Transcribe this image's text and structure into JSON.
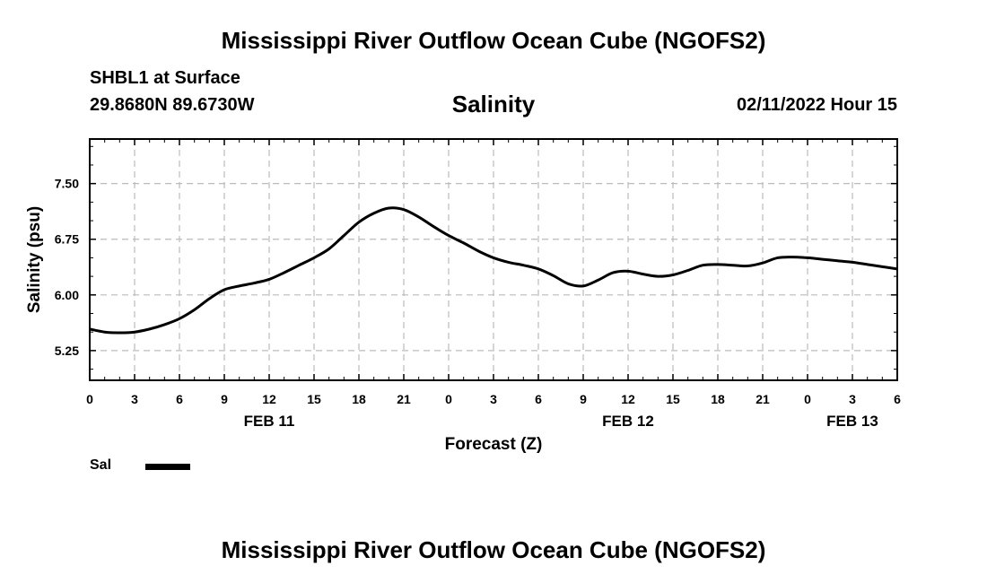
{
  "header": {
    "title": "Mississippi River Outflow Ocean Cube (NGOFS2)",
    "station": "SHBL1 at Surface",
    "coordinates": "29.8680N  89.6730W",
    "chart_title": "Salinity",
    "datetime": "02/11/2022 Hour 15"
  },
  "footer": {
    "title": "Mississippi River Outflow Ocean Cube (NGOFS2)"
  },
  "legend": {
    "label": "Sal",
    "color": "#000000"
  },
  "chart_data": {
    "type": "line",
    "title": "Salinity",
    "xlabel": "Forecast (Z)",
    "ylabel": "Salinity (psu)",
    "ylim": [
      4.85,
      8.1
    ],
    "xlim": [
      0,
      54
    ],
    "grid": true,
    "legend_position": "bottom-left",
    "y_ticks": [
      5.25,
      6.0,
      6.75,
      7.5
    ],
    "y_tick_labels": [
      "5.25",
      "6.00",
      "6.75",
      "7.50"
    ],
    "x_ticks": [
      0,
      3,
      6,
      9,
      12,
      15,
      18,
      21,
      24,
      27,
      30,
      33,
      36,
      39,
      42,
      45,
      48,
      51,
      54
    ],
    "x_tick_labels": [
      "0",
      "3",
      "6",
      "9",
      "12",
      "15",
      "18",
      "21",
      "0",
      "3",
      "6",
      "9",
      "12",
      "15",
      "18",
      "21",
      "0",
      "3",
      "6"
    ],
    "date_labels": [
      {
        "x": 12,
        "label": "FEB 11"
      },
      {
        "x": 36,
        "label": "FEB 12"
      },
      {
        "x": 51,
        "label": "FEB 13"
      }
    ],
    "series": [
      {
        "name": "Sal",
        "color": "#000000",
        "x": [
          0,
          1,
          2,
          3,
          4,
          5,
          6,
          7,
          8,
          9,
          10,
          11,
          12,
          13,
          14,
          15,
          16,
          17,
          18,
          19,
          20,
          21,
          22,
          23,
          24,
          25,
          26,
          27,
          28,
          29,
          30,
          31,
          32,
          33,
          34,
          35,
          36,
          37,
          38,
          39,
          40,
          41,
          42,
          43,
          44,
          45,
          46,
          47,
          48,
          49,
          50,
          51,
          52,
          53,
          54
        ],
        "y": [
          5.54,
          5.5,
          5.49,
          5.5,
          5.54,
          5.6,
          5.68,
          5.8,
          5.95,
          6.07,
          6.12,
          6.16,
          6.21,
          6.3,
          6.4,
          6.5,
          6.62,
          6.8,
          6.98,
          7.1,
          7.17,
          7.15,
          7.05,
          6.92,
          6.8,
          6.7,
          6.59,
          6.5,
          6.44,
          6.4,
          6.35,
          6.26,
          6.15,
          6.12,
          6.2,
          6.3,
          6.32,
          6.28,
          6.25,
          6.27,
          6.33,
          6.4,
          6.41,
          6.4,
          6.39,
          6.43,
          6.5,
          6.51,
          6.5,
          6.48,
          6.46,
          6.44,
          6.41,
          6.38,
          6.35
        ]
      }
    ]
  }
}
